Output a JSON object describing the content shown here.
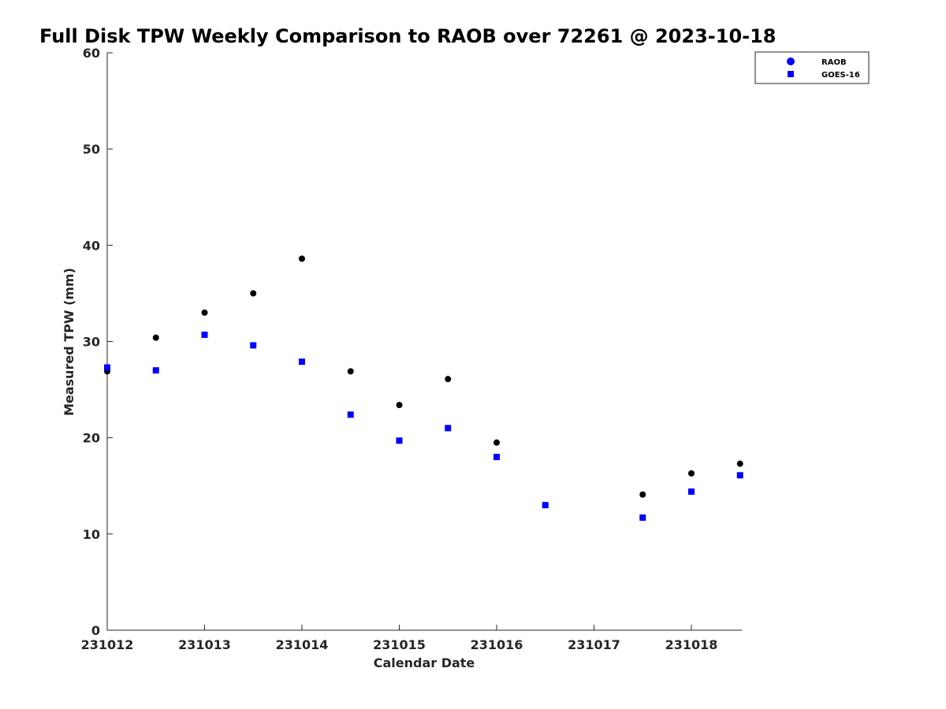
{
  "chart_data": {
    "type": "scatter",
    "title": "Full Disk TPW Weekly Comparison to RAOB over 72261 @ 2023-10-18",
    "xlabel": "Calendar Date",
    "ylabel": "Measured TPW (mm)",
    "x_tick_labels": [
      "231012",
      "231013",
      "231014",
      "231015",
      "231016",
      "231017",
      "231018"
    ],
    "y_tick_labels": [
      "0",
      "10",
      "20",
      "30",
      "40",
      "50",
      "60"
    ],
    "ylim": [
      0,
      60
    ],
    "grid": false,
    "legend_position": "top-right",
    "series": [
      {
        "name": "RAOB",
        "marker": "circle",
        "color": "#000000",
        "legend_color": "#0000ff",
        "x": [
          "231012 00Z",
          "231012 12Z",
          "231013 00Z",
          "231013 12Z",
          "231014 00Z",
          "231014 12Z",
          "231015 00Z",
          "231015 12Z",
          "231016 00Z",
          "231016 12Z",
          "231017 12Z",
          "231018 00Z",
          "231018 12Z"
        ],
        "values": [
          26.9,
          30.4,
          33.0,
          35.0,
          38.6,
          26.9,
          23.4,
          26.1,
          19.5,
          13.0,
          14.1,
          16.3,
          17.3
        ]
      },
      {
        "name": "GOES-16",
        "marker": "square",
        "color": "#0000ff",
        "legend_color": "#0000ff",
        "x": [
          "231012 00Z",
          "231012 12Z",
          "231013 00Z",
          "231013 12Z",
          "231014 00Z",
          "231014 12Z",
          "231015 00Z",
          "231015 12Z",
          "231016 00Z",
          "231016 12Z",
          "231017 12Z",
          "231018 00Z",
          "231018 12Z"
        ],
        "values": [
          27.3,
          27.0,
          30.7,
          29.6,
          27.9,
          22.4,
          19.7,
          21.0,
          18.0,
          13.0,
          11.7,
          14.4,
          16.1
        ]
      }
    ]
  }
}
